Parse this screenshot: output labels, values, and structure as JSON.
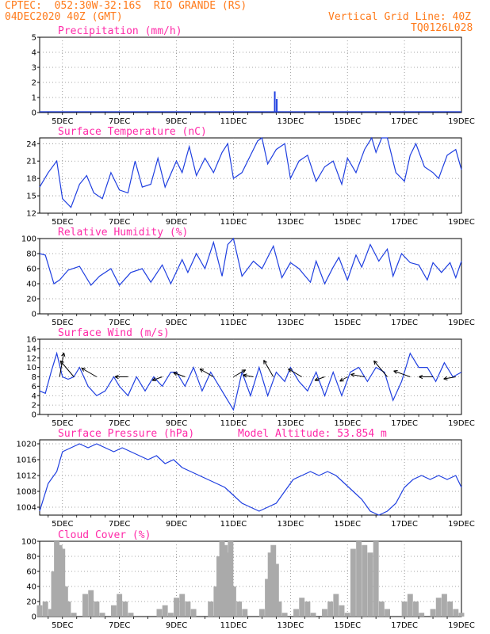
{
  "header": {
    "line1_left": "CPTEC:  052:30W-32:16S  RIO GRANDE (RS)",
    "line2_left": "04DEC2020 40Z (GMT)",
    "line1_right": "Vertical Grid Line: 40Z",
    "line2_right": "TQ0126L028"
  },
  "colors": {
    "header": "#ff7a1a",
    "title": "#ff2aa8",
    "series": "#1f3fe0",
    "cloud": "#aaaaaa",
    "wind_arrow": "#000000"
  },
  "chart_data": [
    {
      "type": "bar",
      "title": "Precipitation (mm/h)",
      "x_tick_labels": [
        "5DEC",
        "7DEC",
        "9DEC",
        "11DEC",
        "13DEC",
        "15DEC",
        "17DEC",
        "19DEC"
      ],
      "ylim": [
        0,
        5
      ],
      "y_ticks": [
        0,
        1,
        2,
        3,
        4,
        5
      ],
      "grid": true,
      "bars": [
        {
          "x": 12.45,
          "value": 1.4
        },
        {
          "x": 12.52,
          "value": 0.9
        }
      ]
    },
    {
      "type": "line",
      "title": "Surface Temperature (nC)",
      "x_tick_labels": [
        "5DEC",
        "7DEC",
        "9DEC",
        "11DEC",
        "13DEC",
        "15DEC",
        "17DEC",
        "19DEC"
      ],
      "ylim": [
        12,
        25
      ],
      "y_ticks": [
        12,
        15,
        18,
        21,
        24
      ],
      "grid": true,
      "x": [
        4.2,
        4.5,
        4.8,
        5.0,
        5.3,
        5.6,
        5.85,
        6.1,
        6.4,
        6.7,
        7.0,
        7.3,
        7.55,
        7.8,
        8.1,
        8.35,
        8.6,
        9.0,
        9.2,
        9.45,
        9.7,
        10.0,
        10.3,
        10.6,
        10.8,
        11.0,
        11.3,
        11.6,
        11.85,
        12.0,
        12.2,
        12.5,
        12.8,
        13.0,
        13.3,
        13.6,
        13.9,
        14.2,
        14.5,
        14.8,
        15.0,
        15.3,
        15.6,
        15.85,
        16.0,
        16.2,
        16.4,
        16.7,
        17.0,
        17.2,
        17.4,
        17.7,
        18.0,
        18.2,
        18.5,
        18.8,
        19.0
      ],
      "y": [
        16.5,
        19,
        21,
        14.5,
        13,
        17,
        18.5,
        15.5,
        14.5,
        19,
        16,
        15.5,
        21,
        16.5,
        17,
        21.5,
        16.5,
        21,
        19,
        23.5,
        18.5,
        21.5,
        19,
        22.5,
        24,
        18,
        19,
        22,
        24.5,
        25,
        20.5,
        23,
        24,
        18,
        21,
        22,
        17.5,
        20,
        21,
        17,
        21.5,
        19,
        23,
        25,
        22.5,
        25,
        25,
        19,
        17.5,
        22,
        24,
        20,
        19,
        18,
        22,
        23,
        19.5
      ]
    },
    {
      "type": "line",
      "title": "Relative Humidity (%)",
      "x_tick_labels": [
        "5DEC",
        "7DEC",
        "9DEC",
        "11DEC",
        "13DEC",
        "15DEC",
        "17DEC",
        "19DEC"
      ],
      "ylim": [
        0,
        100
      ],
      "y_ticks": [
        0,
        20,
        40,
        60,
        80,
        100
      ],
      "grid": true,
      "x": [
        4.2,
        4.4,
        4.7,
        4.9,
        5.2,
        5.6,
        6.0,
        6.3,
        6.7,
        7.0,
        7.4,
        7.8,
        8.1,
        8.5,
        8.8,
        9.2,
        9.4,
        9.7,
        10.0,
        10.3,
        10.6,
        10.8,
        11.0,
        11.3,
        11.7,
        12.0,
        12.4,
        12.7,
        13.0,
        13.3,
        13.7,
        13.9,
        14.2,
        14.5,
        14.7,
        15.0,
        15.3,
        15.5,
        15.8,
        16.1,
        16.4,
        16.6,
        16.9,
        17.2,
        17.5,
        17.8,
        18.0,
        18.3,
        18.6,
        18.8,
        19.0
      ],
      "y": [
        80,
        78,
        40,
        45,
        58,
        63,
        38,
        50,
        60,
        38,
        55,
        60,
        42,
        65,
        40,
        72,
        55,
        80,
        60,
        95,
        50,
        92,
        100,
        50,
        70,
        60,
        90,
        48,
        68,
        60,
        42,
        70,
        40,
        62,
        75,
        45,
        78,
        62,
        92,
        70,
        86,
        50,
        80,
        68,
        65,
        45,
        68,
        55,
        68,
        48,
        70
      ]
    },
    {
      "type": "line",
      "title": "Surface Wind (m/s)",
      "x_tick_labels": [
        "5DEC",
        "7DEC",
        "9DEC",
        "11DEC",
        "13DEC",
        "15DEC",
        "17DEC",
        "19DEC"
      ],
      "ylim": [
        0,
        16
      ],
      "y_ticks": [
        0,
        2,
        4,
        6,
        8,
        10,
        12,
        14,
        16
      ],
      "grid": true,
      "x": [
        4.2,
        4.4,
        4.6,
        4.8,
        5.0,
        5.2,
        5.4,
        5.6,
        5.9,
        6.2,
        6.5,
        6.8,
        7.0,
        7.3,
        7.6,
        7.9,
        8.2,
        8.5,
        8.8,
        9.0,
        9.3,
        9.6,
        9.9,
        10.2,
        10.5,
        10.8,
        11.0,
        11.3,
        11.6,
        11.9,
        12.2,
        12.5,
        12.8,
        13.0,
        13.3,
        13.6,
        13.9,
        14.2,
        14.5,
        14.8,
        15.1,
        15.4,
        15.7,
        16.0,
        16.3,
        16.6,
        16.9,
        17.2,
        17.5,
        17.8,
        18.1,
        18.4,
        18.7,
        19.0
      ],
      "y": [
        5,
        4.5,
        9,
        13,
        8,
        7.5,
        8,
        10,
        6,
        4,
        5,
        8,
        6,
        4,
        8,
        5,
        8,
        6,
        9,
        9,
        6,
        10,
        5,
        9,
        6,
        3,
        1,
        9,
        4,
        10,
        4,
        9,
        7,
        10,
        7,
        5,
        9,
        4,
        9,
        4,
        9,
        10,
        7,
        10,
        9,
        3,
        7,
        13,
        10,
        10,
        7,
        11,
        8,
        9
      ],
      "arrows": [
        {
          "x": 4.9,
          "speed": 14,
          "angle_deg": 80
        },
        {
          "x": 5.4,
          "speed": 12,
          "angle_deg": 130
        },
        {
          "x": 6.2,
          "speed": 10,
          "angle_deg": 150
        },
        {
          "x": 7.3,
          "speed": 7.5,
          "angle_deg": 180
        },
        {
          "x": 8.5,
          "speed": 6,
          "angle_deg": 200
        },
        {
          "x": 9.3,
          "speed": 7,
          "angle_deg": 160
        },
        {
          "x": 10.3,
          "speed": 9,
          "angle_deg": 150
        },
        {
          "x": 11.0,
          "speed": 8,
          "angle_deg": 30
        },
        {
          "x": 11.7,
          "speed": 6,
          "angle_deg": 170
        },
        {
          "x": 12.4,
          "speed": 11,
          "angle_deg": 120
        },
        {
          "x": 13.4,
          "speed": 9,
          "angle_deg": 150
        },
        {
          "x": 14.2,
          "speed": 6,
          "angle_deg": 200
        },
        {
          "x": 15.0,
          "speed": 5,
          "angle_deg": 210
        },
        {
          "x": 15.6,
          "speed": 8,
          "angle_deg": 170
        },
        {
          "x": 16.4,
          "speed": 12,
          "angle_deg": 130
        },
        {
          "x": 17.2,
          "speed": 10,
          "angle_deg": 160
        },
        {
          "x": 18.0,
          "speed": 8,
          "angle_deg": 180
        },
        {
          "x": 18.8,
          "speed": 7,
          "angle_deg": 190
        }
      ]
    },
    {
      "type": "line",
      "title": "Surface Pressure (hPa)",
      "subtitle": "Model Altitude: 53.854  m",
      "x_tick_labels": [
        "5DEC",
        "7DEC",
        "9DEC",
        "11DEC",
        "13DEC",
        "15DEC",
        "17DEC",
        "19DEC"
      ],
      "ylim": [
        1002,
        1021
      ],
      "y_ticks": [
        1004,
        1008,
        1012,
        1016,
        1020
      ],
      "grid": true,
      "x": [
        4.2,
        4.5,
        4.8,
        5.0,
        5.3,
        5.6,
        5.9,
        6.2,
        6.5,
        6.8,
        7.1,
        7.4,
        7.7,
        8.0,
        8.3,
        8.6,
        8.9,
        9.2,
        9.5,
        9.8,
        10.1,
        10.4,
        10.7,
        11.0,
        11.3,
        11.6,
        11.9,
        12.2,
        12.5,
        12.8,
        13.1,
        13.4,
        13.7,
        14.0,
        14.3,
        14.6,
        14.9,
        15.2,
        15.5,
        15.8,
        16.1,
        16.4,
        16.7,
        17.0,
        17.3,
        17.6,
        17.9,
        18.2,
        18.5,
        18.8,
        19.0
      ],
      "y": [
        1003,
        1010,
        1013,
        1018,
        1019,
        1020,
        1019,
        1020,
        1019,
        1018,
        1019,
        1018,
        1017,
        1016,
        1017,
        1015,
        1016,
        1014,
        1013,
        1012,
        1011,
        1010,
        1009,
        1007,
        1005,
        1004,
        1003,
        1004,
        1005,
        1008,
        1011,
        1012,
        1013,
        1012,
        1013,
        1012,
        1010,
        1008,
        1006,
        1003,
        1002,
        1003,
        1005,
        1009,
        1011,
        1012,
        1011,
        1012,
        1011,
        1012,
        1009
      ]
    },
    {
      "type": "bar",
      "title": "Cloud Cover (%)",
      "x_tick_labels": [
        "5DEC",
        "7DEC",
        "9DEC",
        "11DEC",
        "13DEC",
        "15DEC",
        "17DEC",
        "19DEC"
      ],
      "ylim": [
        0,
        100
      ],
      "y_ticks": [
        0,
        20,
        40,
        60,
        80,
        100
      ],
      "grid": true,
      "x": [
        4.2,
        4.4,
        4.6,
        4.7,
        4.8,
        4.9,
        5.0,
        5.1,
        5.2,
        5.4,
        5.6,
        5.8,
        6.0,
        6.2,
        6.4,
        6.6,
        6.8,
        7.0,
        7.2,
        7.4,
        7.6,
        7.8,
        8.0,
        8.2,
        8.4,
        8.6,
        8.8,
        9.0,
        9.2,
        9.4,
        9.6,
        9.8,
        10.0,
        10.2,
        10.4,
        10.5,
        10.6,
        10.7,
        10.8,
        10.9,
        11.0,
        11.2,
        11.4,
        11.6,
        11.8,
        12.0,
        12.2,
        12.3,
        12.4,
        12.5,
        12.6,
        12.8,
        13.0,
        13.2,
        13.4,
        13.6,
        13.8,
        14.0,
        14.2,
        14.4,
        14.6,
        14.8,
        15.0,
        15.2,
        15.4,
        15.6,
        15.8,
        16.0,
        16.2,
        16.4,
        16.6,
        16.8,
        17.0,
        17.2,
        17.4,
        17.6,
        17.8,
        18.0,
        18.2,
        18.4,
        18.6,
        18.8,
        19.0
      ],
      "values": [
        15,
        20,
        10,
        60,
        100,
        95,
        90,
        40,
        20,
        5,
        0,
        30,
        35,
        20,
        5,
        0,
        15,
        30,
        20,
        5,
        0,
        0,
        0,
        0,
        10,
        15,
        5,
        25,
        30,
        20,
        10,
        0,
        0,
        20,
        40,
        80,
        100,
        95,
        85,
        100,
        40,
        20,
        10,
        0,
        0,
        10,
        50,
        85,
        95,
        70,
        20,
        5,
        0,
        10,
        25,
        20,
        5,
        0,
        10,
        20,
        30,
        15,
        5,
        90,
        100,
        95,
        85,
        100,
        20,
        10,
        0,
        0,
        20,
        30,
        20,
        5,
        0,
        10,
        25,
        30,
        20,
        10,
        5
      ]
    }
  ]
}
